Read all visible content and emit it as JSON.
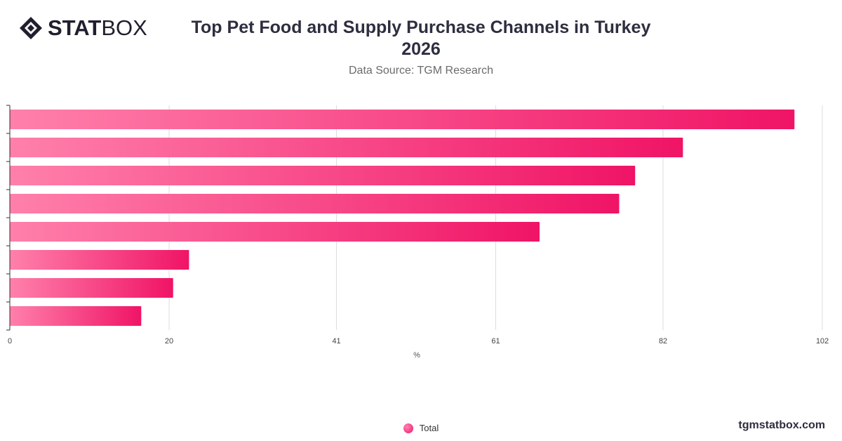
{
  "brand": {
    "logo_bold": "STAT",
    "logo_light": "BOX",
    "footer_site": "tgmstatbox.com"
  },
  "header": {
    "title_line1": "Top Pet Food and Supply Purchase Channels in Turkey",
    "title_line2": "2026",
    "subtitle": "Data Source: TGM Research"
  },
  "colors": {
    "bar_start": "#ff80ab",
    "bar_end": "#f01466",
    "grid": "#dddddd",
    "axis": "#333333"
  },
  "chart_data": {
    "type": "bar",
    "orientation": "horizontal",
    "categories": [
      "",
      "",
      "",
      "",
      "",
      "",
      "",
      ""
    ],
    "series": [
      {
        "name": "Total",
        "values": [
          98.5,
          84.5,
          78.5,
          76.5,
          66.5,
          22.5,
          20.5,
          16.5
        ]
      }
    ],
    "xlabel": "%",
    "ylabel": "",
    "xlim": [
      0,
      102
    ],
    "xticks": [
      0,
      20,
      41,
      61,
      82,
      102
    ],
    "grid": true,
    "legend": "bottom-center"
  }
}
